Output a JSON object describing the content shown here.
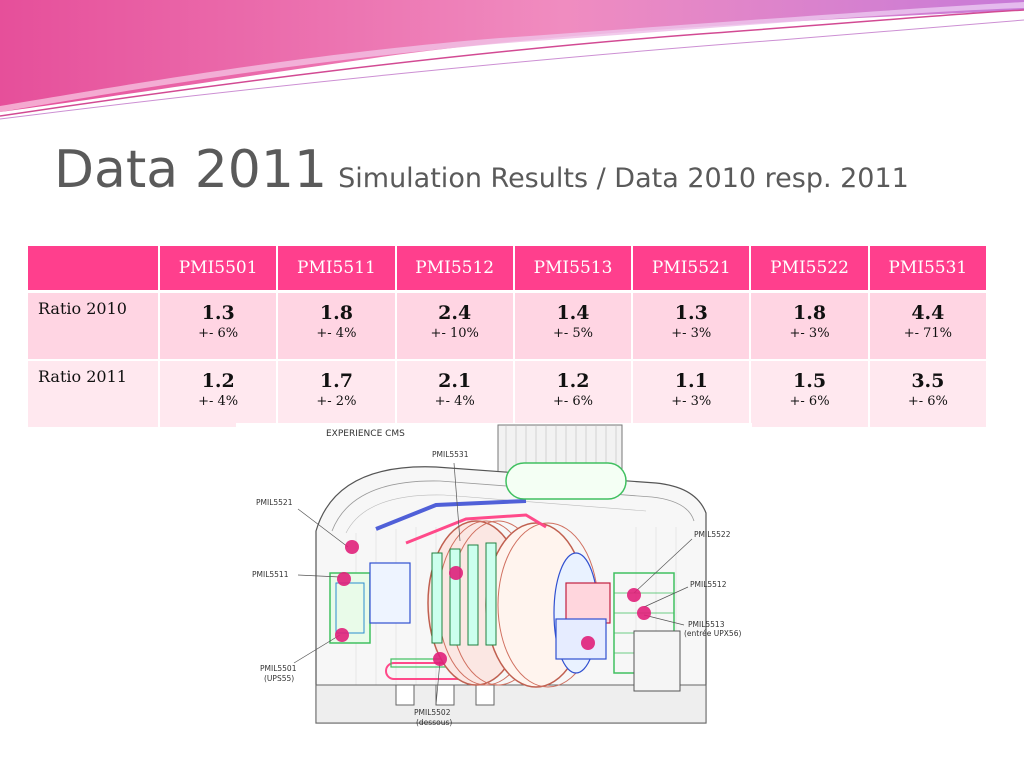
{
  "title": {
    "main": "Data 2011",
    "sub": "Simulation Results / Data 2010 resp. 2011"
  },
  "table": {
    "headers": [
      "PMI5501",
      "PMI5511",
      "PMI5512",
      "PMI5513",
      "PMI5521",
      "PMI5522",
      "PMI5531"
    ],
    "rows": [
      {
        "label": "Ratio 2010",
        "values": [
          "1.3",
          "1.8",
          "2.4",
          "1.4",
          "1.3",
          "1.8",
          "4.4"
        ],
        "errors": [
          "+- 6%",
          "+- 4%",
          "+- 10%",
          "+- 5%",
          "+- 3%",
          "+- 3%",
          "+- 71%"
        ]
      },
      {
        "label": "Ratio 2011",
        "values": [
          "1.2",
          "1.7",
          "2.1",
          "1.2",
          "1.1",
          "1.5",
          "3.5"
        ],
        "errors": [
          "+- 4%",
          "+- 2%",
          "+- 4%",
          "+- 6%",
          "+- 3%",
          "+- 6%",
          "+- 6%"
        ]
      }
    ]
  },
  "diagram": {
    "title": "EXPERIENCE CMS",
    "labels": {
      "pmil5531": "PMIL5531",
      "pmil5521": "PMIL5521",
      "pmil5511": "PMIL5511",
      "pmil5501": "PMIL5501",
      "pmil5501_note": "(UPS55)",
      "pmil5502": "PMIL5502",
      "pmil5502_note": "(dessous)",
      "pmil5522": "PMIL5522",
      "pmil5512": "PMIL5512",
      "pmil5513": "PMIL5513",
      "pmil5513_note": "(entrée UPX56)"
    },
    "colors": {
      "marker": "#e0207a",
      "structure": "#40c060",
      "accent": "#ff4a8a"
    }
  },
  "theme": {
    "header_bg": "#ff3f8d",
    "row_bg": "#ffd5e3",
    "row_alt_bg": "#ffe8ef",
    "title_color": "#5a5a5a"
  }
}
